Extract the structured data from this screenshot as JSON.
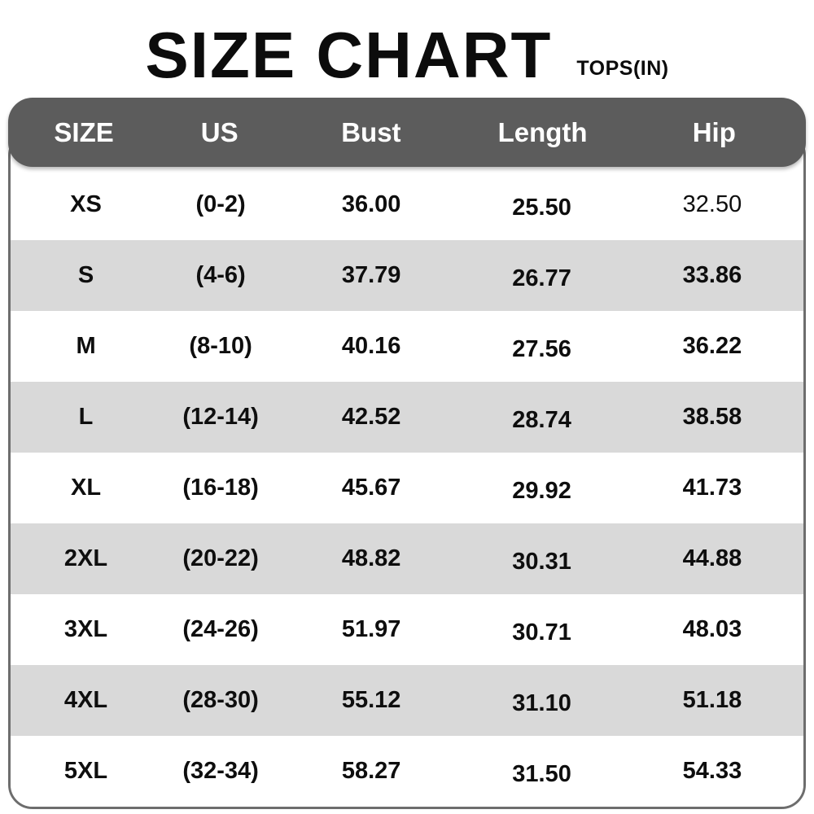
{
  "title": "SIZE CHART",
  "subtitle": "TOPS(IN)",
  "colors": {
    "header_bg": "#5c5c5c",
    "header_text": "#ffffff",
    "row_alt_bg": "#d9d9d9",
    "border": "#6d6d6d",
    "text": "#0e0e0e"
  },
  "table": {
    "columns": [
      "SIZE",
      "US",
      "Bust",
      "Length",
      "Hip"
    ],
    "rows": [
      {
        "size": "XS",
        "us": "(0-2)",
        "bust": "36.00",
        "length": "25.50",
        "hip": "32.50"
      },
      {
        "size": "S",
        "us": "(4-6)",
        "bust": "37.79",
        "length": "26.77",
        "hip": "33.86"
      },
      {
        "size": "M",
        "us": "(8-10)",
        "bust": "40.16",
        "length": "27.56",
        "hip": "36.22"
      },
      {
        "size": "L",
        "us": "(12-14)",
        "bust": "42.52",
        "length": "28.74",
        "hip": "38.58"
      },
      {
        "size": "XL",
        "us": "(16-18)",
        "bust": "45.67",
        "length": "29.92",
        "hip": "41.73"
      },
      {
        "size": "2XL",
        "us": "(20-22)",
        "bust": "48.82",
        "length": "30.31",
        "hip": "44.88"
      },
      {
        "size": "3XL",
        "us": "(24-26)",
        "bust": "51.97",
        "length": "30.71",
        "hip": "48.03"
      },
      {
        "size": "4XL",
        "us": "(28-30)",
        "bust": "55.12",
        "length": "31.10",
        "hip": "51.18"
      },
      {
        "size": "5XL",
        "us": "(32-34)",
        "bust": "58.27",
        "length": "31.50",
        "hip": "54.33"
      }
    ]
  }
}
